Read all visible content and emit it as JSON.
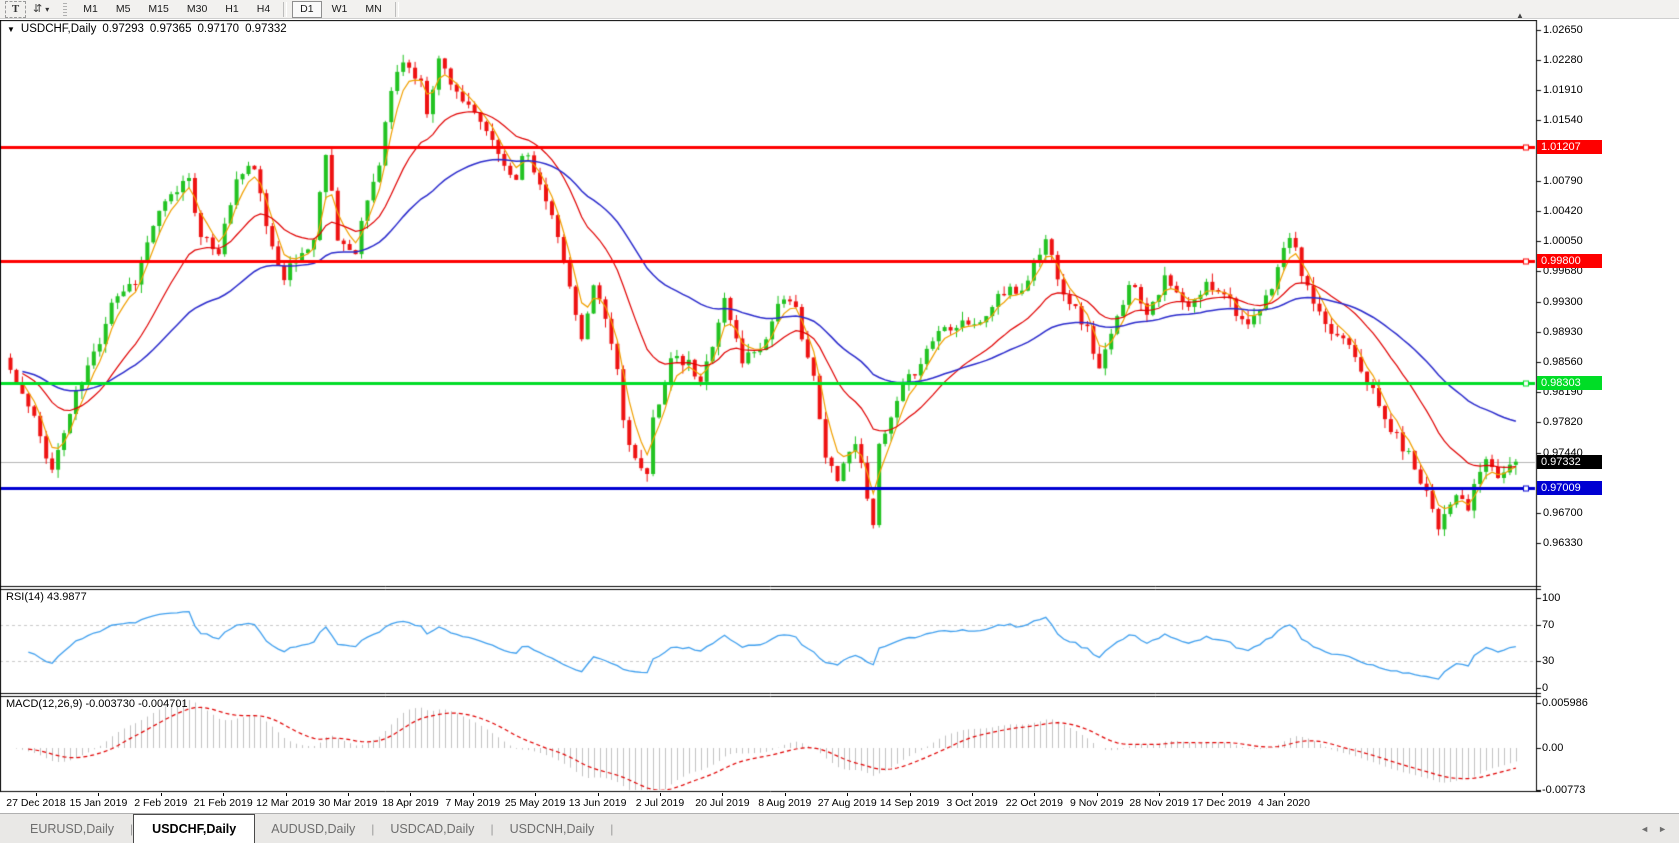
{
  "icons": {
    "text_tool": "T",
    "symbols_tool": "⇵",
    "caret": "▾",
    "collapse": "▼",
    "scroll_marker": "▲",
    "tab_scroll_left": "◄",
    "tab_scroll_right": "►"
  },
  "toolbar": {
    "text_tool_label": "T",
    "timeframes": [
      "M1",
      "M5",
      "M15",
      "M30",
      "H1",
      "H4",
      "D1",
      "W1",
      "MN"
    ],
    "active_timeframe": "D1"
  },
  "chart": {
    "title": "USDCHF,Daily",
    "ohlc": {
      "open": "0.97293",
      "high": "0.97365",
      "low": "0.97170",
      "close": "0.97332"
    }
  },
  "price_axis": {
    "ticks": [
      "1.02650",
      "1.02280",
      "1.01910",
      "1.01540",
      "1.00790",
      "1.00420",
      "1.00050",
      "0.99680",
      "0.99300",
      "0.98930",
      "0.98560",
      "0.98190",
      "0.97820",
      "0.97440",
      "0.96700",
      "0.96330"
    ]
  },
  "panels": {
    "rsi": {
      "label": "RSI(14) 43.9877",
      "name": "RSI",
      "period": 14,
      "value": "43.9877",
      "axis": [
        "100",
        "70",
        "30",
        "0"
      ]
    },
    "macd": {
      "label": "MACD(12,26,9) -0.003730 -0.004701",
      "name": "MACD",
      "params": "12,26,9",
      "values": [
        "-0.003730",
        "-0.004701"
      ],
      "axis": [
        "0.005986",
        "0.00",
        "-0.00773"
      ]
    }
  },
  "tabs": {
    "items": [
      "EURUSD,Daily",
      "USDCHF,Daily",
      "AUDUSD,Daily",
      "USDCAD,Daily",
      "USDCNH,Daily"
    ],
    "active": "USDCHF,Daily"
  },
  "chart_data": {
    "type": "candlestick",
    "symbol": "USDCHF",
    "timeframe": "Daily",
    "ylim": [
      0.9633,
      1.0265
    ],
    "n_candles": 254,
    "x_tick_labels": [
      "27 Dec 2018",
      "15 Jan 2019",
      "2 Feb 2019",
      "21 Feb 2019",
      "12 Mar 2019",
      "30 Mar 2019",
      "18 Apr 2019",
      "7 May 2019",
      "25 May 2019",
      "13 Jun 2019",
      "2 Jul 2019",
      "20 Jul 2019",
      "8 Aug 2019",
      "27 Aug 2019",
      "14 Sep 2019",
      "3 Oct 2019",
      "22 Oct 2019",
      "9 Nov 2019",
      "28 Nov 2019",
      "17 Dec 2019",
      "4 Jan 2020"
    ],
    "last_candle": {
      "open": 0.97293,
      "high": 0.97365,
      "low": 0.9717,
      "close": 0.97332
    },
    "close_anchors": [
      [
        0,
        0.98461
      ],
      [
        4,
        0.97845
      ],
      [
        7,
        0.97229
      ],
      [
        11,
        0.98153
      ],
      [
        15,
        0.98831
      ],
      [
        17,
        0.99324
      ],
      [
        21,
        0.9957
      ],
      [
        24,
        1.00248
      ],
      [
        26,
        1.00494
      ],
      [
        30,
        1.00864
      ],
      [
        32,
        1.00063
      ],
      [
        35,
        0.9994
      ],
      [
        38,
        1.00802
      ],
      [
        41,
        1.00987
      ],
      [
        43,
        1.00186
      ],
      [
        46,
        0.99632
      ],
      [
        48,
        0.99816
      ],
      [
        51,
        1.00063
      ],
      [
        53,
        1.01172
      ],
      [
        55,
        1.00124
      ],
      [
        58,
        0.99816
      ],
      [
        59,
        1.00309
      ],
      [
        62,
        1.01048
      ],
      [
        64,
        1.01911
      ],
      [
        66,
        1.0228
      ],
      [
        69,
        1.01972
      ],
      [
        70,
        1.01664
      ],
      [
        72,
        1.0228
      ],
      [
        75,
        1.01911
      ],
      [
        77,
        1.01664
      ],
      [
        80,
        1.01418
      ],
      [
        81,
        1.01233
      ],
      [
        83,
        1.00987
      ],
      [
        85,
        1.00802
      ],
      [
        86,
        1.01172
      ],
      [
        88,
        1.00925
      ],
      [
        91,
        1.00432
      ],
      [
        92,
        1.00063
      ],
      [
        95,
        0.992
      ],
      [
        96,
        0.98831
      ],
      [
        98,
        0.99447
      ],
      [
        100,
        0.99077
      ],
      [
        102,
        0.98461
      ],
      [
        103,
        0.97845
      ],
      [
        105,
        0.97352
      ],
      [
        107,
        0.97106
      ],
      [
        108,
        0.97845
      ],
      [
        111,
        0.98584
      ],
      [
        114,
        0.98523
      ],
      [
        116,
        0.98277
      ],
      [
        119,
        0.99077
      ],
      [
        120,
        0.99324
      ],
      [
        123,
        0.98584
      ],
      [
        127,
        0.98831
      ],
      [
        129,
        0.99324
      ],
      [
        132,
        0.992
      ],
      [
        135,
        0.98338
      ],
      [
        137,
        0.97352
      ],
      [
        139,
        0.97168
      ],
      [
        142,
        0.97599
      ],
      [
        145,
        0.96613
      ],
      [
        146,
        0.97476
      ],
      [
        150,
        0.98215
      ],
      [
        153,
        0.98584
      ],
      [
        156,
        0.98954
      ],
      [
        160,
        0.99077
      ],
      [
        163,
        0.99015
      ],
      [
        166,
        0.99385
      ],
      [
        170,
        0.99447
      ],
      [
        174,
        1.00063
      ],
      [
        177,
        0.99447
      ],
      [
        181,
        0.98954
      ],
      [
        183,
        0.98461
      ],
      [
        186,
        0.99077
      ],
      [
        188,
        0.9957
      ],
      [
        191,
        0.992
      ],
      [
        194,
        0.9957
      ],
      [
        198,
        0.992
      ],
      [
        201,
        0.99508
      ],
      [
        204,
        0.99447
      ],
      [
        208,
        0.98954
      ],
      [
        211,
        0.99324
      ],
      [
        215,
        1.00125
      ],
      [
        218,
        0.99447
      ],
      [
        221,
        0.98954
      ],
      [
        225,
        0.98831
      ],
      [
        228,
        0.98338
      ],
      [
        231,
        0.97845
      ],
      [
        235,
        0.97414
      ],
      [
        238,
        0.96983
      ],
      [
        240,
        0.96552
      ],
      [
        242,
        0.96859
      ],
      [
        244,
        0.96859
      ],
      [
        245,
        0.96736
      ],
      [
        247,
        0.97229
      ],
      [
        248,
        0.97352
      ],
      [
        250,
        0.97167
      ],
      [
        252,
        0.97229
      ],
      [
        253,
        0.97332
      ]
    ],
    "levels": [
      {
        "label": "1.01207",
        "price": 1.01207,
        "color": "#fe0000",
        "thickness": 3
      },
      {
        "label": "0.99800",
        "price": 0.998,
        "color": "#fe0000",
        "thickness": 3
      },
      {
        "label": "0.98303",
        "price": 0.98303,
        "color": "#00dd26",
        "thickness": 3
      },
      {
        "label": "0.97332",
        "price": 0.97332,
        "color": "#b4b4b4",
        "thickness": 1,
        "label_bg": "#000000"
      },
      {
        "label": "0.97009",
        "price": 0.97009,
        "color": "#0000d2",
        "thickness": 3
      }
    ],
    "moving_averages": [
      {
        "name": "fast",
        "period": 4,
        "color": "#f0a000"
      },
      {
        "name": "medium",
        "period": 18,
        "color": "#e00000"
      },
      {
        "name": "slow",
        "period": 45,
        "color": "#2b2bcc"
      }
    ],
    "indicators": [
      {
        "type": "rsi",
        "period": 14,
        "last_value": 43.9877,
        "levels": [
          70,
          30
        ]
      },
      {
        "type": "macd",
        "fast": 12,
        "slow": 26,
        "signal": 9,
        "last_values": [
          -0.00373,
          -0.004701
        ]
      }
    ],
    "colors": {
      "bull": "#22c322",
      "bear": "#ee1212",
      "rsi": "#3f9fee",
      "macd_hist": "#c2c2c2",
      "macd_signal": "#e00000"
    }
  }
}
